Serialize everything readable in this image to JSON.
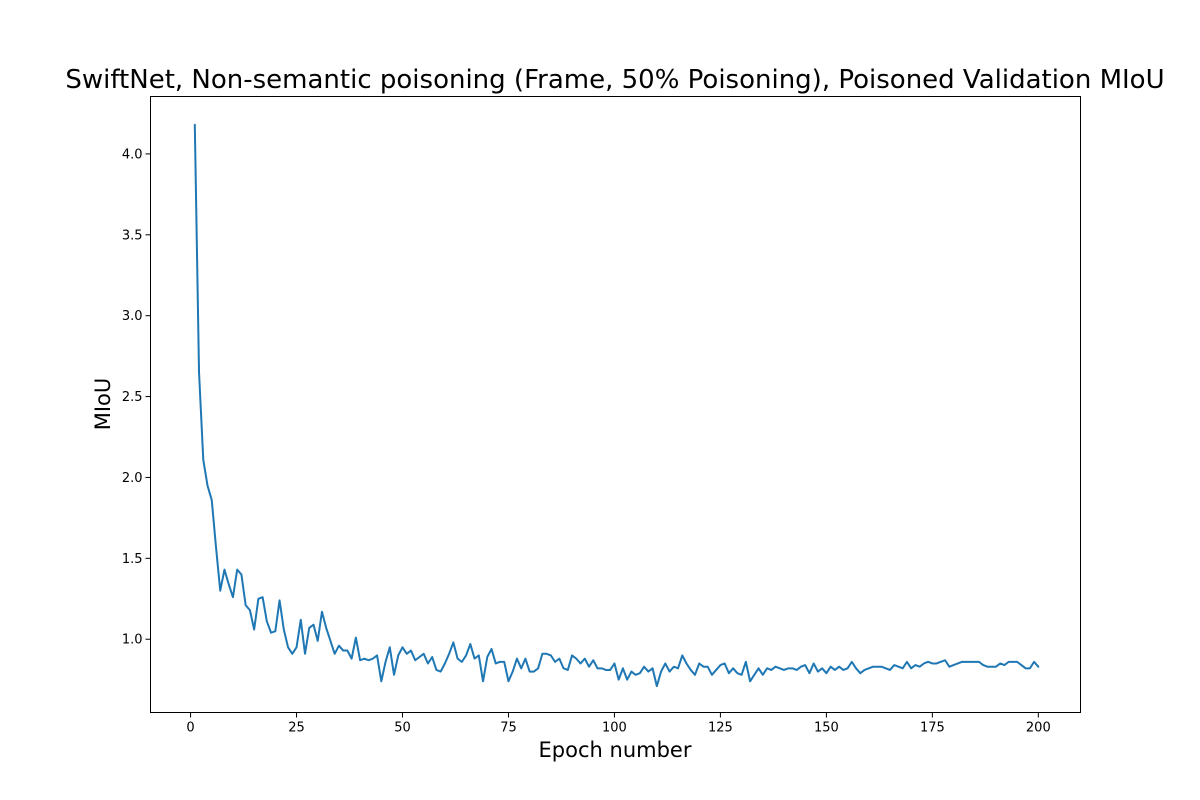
{
  "chart_data": {
    "type": "line",
    "title": "SwiftNet, Non-semantic poisoning (Frame, 50% Poisoning), Poisoned Validation MIoU",
    "xlabel": "Epoch number",
    "ylabel": "MIoU",
    "xlim": [
      -9.45,
      209.95
    ],
    "ylim": [
      0.547,
      4.355
    ],
    "xticks": [
      0,
      25,
      50,
      75,
      100,
      125,
      150,
      175,
      200
    ],
    "yticks": [
      1.0,
      1.5,
      2.0,
      2.5,
      3.0,
      3.5,
      4.0
    ],
    "xtick_labels": [
      "0",
      "25",
      "50",
      "75",
      "100",
      "125",
      "150",
      "175",
      "200"
    ],
    "ytick_labels": [
      "1.0",
      "1.5",
      "2.0",
      "2.5",
      "3.0",
      "3.5",
      "4.0"
    ],
    "grid": false,
    "legend": "none",
    "series": [
      {
        "color": "#1f77b4",
        "x_start": 1,
        "x_step": 1,
        "values": [
          4.18,
          2.65,
          2.11,
          1.95,
          1.86,
          1.57,
          1.3,
          1.43,
          1.34,
          1.26,
          1.43,
          1.4,
          1.21,
          1.18,
          1.06,
          1.25,
          1.26,
          1.11,
          1.04,
          1.05,
          1.24,
          1.06,
          0.95,
          0.91,
          0.95,
          1.12,
          0.91,
          1.07,
          1.09,
          0.99,
          1.17,
          1.07,
          0.99,
          0.91,
          0.96,
          0.93,
          0.93,
          0.88,
          1.01,
          0.87,
          0.88,
          0.87,
          0.88,
          0.9,
          0.74,
          0.86,
          0.95,
          0.78,
          0.9,
          0.95,
          0.91,
          0.93,
          0.87,
          0.89,
          0.91,
          0.85,
          0.89,
          0.81,
          0.8,
          0.85,
          0.91,
          0.98,
          0.88,
          0.86,
          0.9,
          0.97,
          0.88,
          0.9,
          0.74,
          0.89,
          0.94,
          0.85,
          0.86,
          0.86,
          0.74,
          0.8,
          0.88,
          0.82,
          0.88,
          0.8,
          0.8,
          0.82,
          0.91,
          0.91,
          0.9,
          0.86,
          0.88,
          0.82,
          0.81,
          0.9,
          0.88,
          0.85,
          0.88,
          0.83,
          0.87,
          0.82,
          0.82,
          0.81,
          0.81,
          0.85,
          0.75,
          0.82,
          0.75,
          0.8,
          0.78,
          0.79,
          0.83,
          0.8,
          0.82,
          0.71,
          0.8,
          0.85,
          0.8,
          0.83,
          0.82,
          0.9,
          0.85,
          0.81,
          0.78,
          0.85,
          0.83,
          0.83,
          0.78,
          0.81,
          0.84,
          0.85,
          0.79,
          0.82,
          0.79,
          0.78,
          0.86,
          0.74,
          0.78,
          0.82,
          0.78,
          0.82,
          0.81,
          0.83,
          0.82,
          0.81,
          0.82,
          0.82,
          0.81,
          0.83,
          0.84,
          0.79,
          0.85,
          0.8,
          0.82,
          0.79,
          0.83,
          0.81,
          0.83,
          0.81,
          0.82,
          0.86,
          0.82,
          0.79,
          0.81,
          0.82,
          0.83,
          0.83,
          0.83,
          0.82,
          0.81,
          0.84,
          0.83,
          0.82,
          0.86,
          0.82,
          0.84,
          0.83,
          0.85,
          0.86,
          0.85,
          0.85,
          0.86,
          0.87,
          0.83,
          0.84,
          0.85,
          0.86,
          0.86,
          0.86,
          0.86,
          0.86,
          0.84,
          0.83,
          0.83,
          0.83,
          0.85,
          0.84,
          0.86,
          0.86,
          0.86,
          0.84,
          0.82,
          0.82,
          0.86,
          0.83
        ]
      }
    ]
  }
}
